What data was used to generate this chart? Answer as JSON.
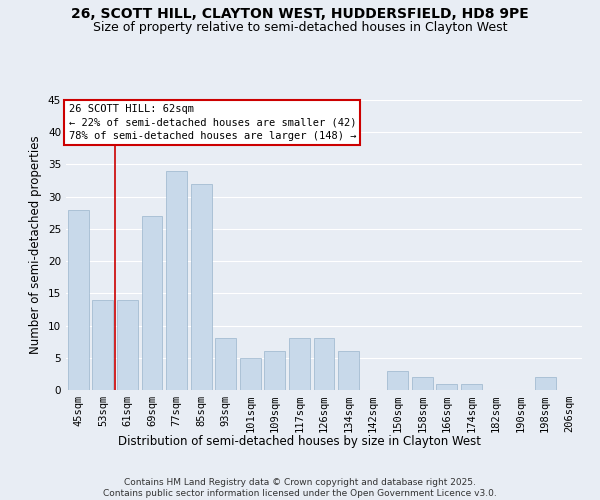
{
  "title": "26, SCOTT HILL, CLAYTON WEST, HUDDERSFIELD, HD8 9PE",
  "subtitle": "Size of property relative to semi-detached houses in Clayton West",
  "xlabel": "Distribution of semi-detached houses by size in Clayton West",
  "ylabel": "Number of semi-detached properties",
  "categories": [
    "45sqm",
    "53sqm",
    "61sqm",
    "69sqm",
    "77sqm",
    "85sqm",
    "93sqm",
    "101sqm",
    "109sqm",
    "117sqm",
    "126sqm",
    "134sqm",
    "142sqm",
    "150sqm",
    "158sqm",
    "166sqm",
    "174sqm",
    "182sqm",
    "190sqm",
    "198sqm",
    "206sqm"
  ],
  "values": [
    28,
    14,
    14,
    27,
    34,
    32,
    8,
    5,
    6,
    8,
    8,
    6,
    0,
    3,
    2,
    1,
    1,
    0,
    0,
    2,
    0
  ],
  "bar_color": "#c8d9ea",
  "bar_edge_color": "#9ab5cc",
  "background_color": "#e8edf4",
  "grid_color": "#ffffff",
  "property_line_index": 2,
  "annotation_title": "26 SCOTT HILL: 62sqm",
  "annotation_line1": "← 22% of semi-detached houses are smaller (42)",
  "annotation_line2": "78% of semi-detached houses are larger (148) →",
  "annotation_box_color": "#ffffff",
  "annotation_box_edge": "#cc0000",
  "property_line_color": "#cc0000",
  "ylim": [
    0,
    45
  ],
  "yticks": [
    0,
    5,
    10,
    15,
    20,
    25,
    30,
    35,
    40,
    45
  ],
  "footer": "Contains HM Land Registry data © Crown copyright and database right 2025.\nContains public sector information licensed under the Open Government Licence v3.0.",
  "title_fontsize": 10,
  "subtitle_fontsize": 9,
  "xlabel_fontsize": 8.5,
  "ylabel_fontsize": 8.5,
  "tick_fontsize": 7.5,
  "annotation_fontsize": 7.5,
  "footer_fontsize": 6.5
}
